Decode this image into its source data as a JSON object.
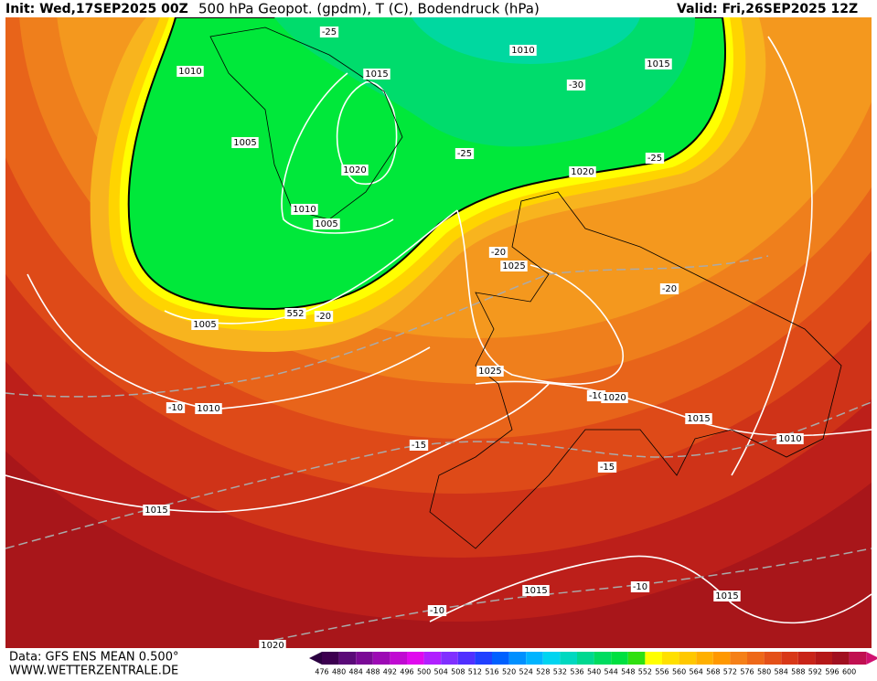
{
  "header": {
    "init": "Init: Wed,17SEP2025 00Z",
    "title": "500 hPa Geopot. (gpdm), T (C), Bodendruck (hPa)",
    "valid": "Valid: Fri,26SEP2025 12Z"
  },
  "footer": {
    "data": "Data: GFS ENS MEAN 0.500°",
    "site": "WWW.WETTERZENTRALE.DE"
  },
  "legend": {
    "labels": [
      476,
      480,
      484,
      488,
      492,
      496,
      500,
      504,
      508,
      512,
      516,
      520,
      524,
      528,
      532,
      536,
      540,
      544,
      548,
      552,
      556,
      560,
      564,
      568,
      572,
      576,
      580,
      584,
      588,
      592,
      596,
      600
    ]
  },
  "map": {
    "labels": [
      "-25",
      "1010",
      "1010",
      "1015",
      "1015",
      "-30",
      "1005",
      "-25",
      "-25",
      "1020",
      "1020",
      "1010",
      "1005",
      "-20",
      "1025",
      "-20",
      "552",
      "-20",
      "1005",
      "1025",
      "-10",
      "1010",
      "-10",
      "1020",
      "1015",
      "1010",
      "-15",
      "-15",
      "1015",
      "1015",
      "-10",
      "1015",
      "-10",
      "1020"
    ]
  }
}
